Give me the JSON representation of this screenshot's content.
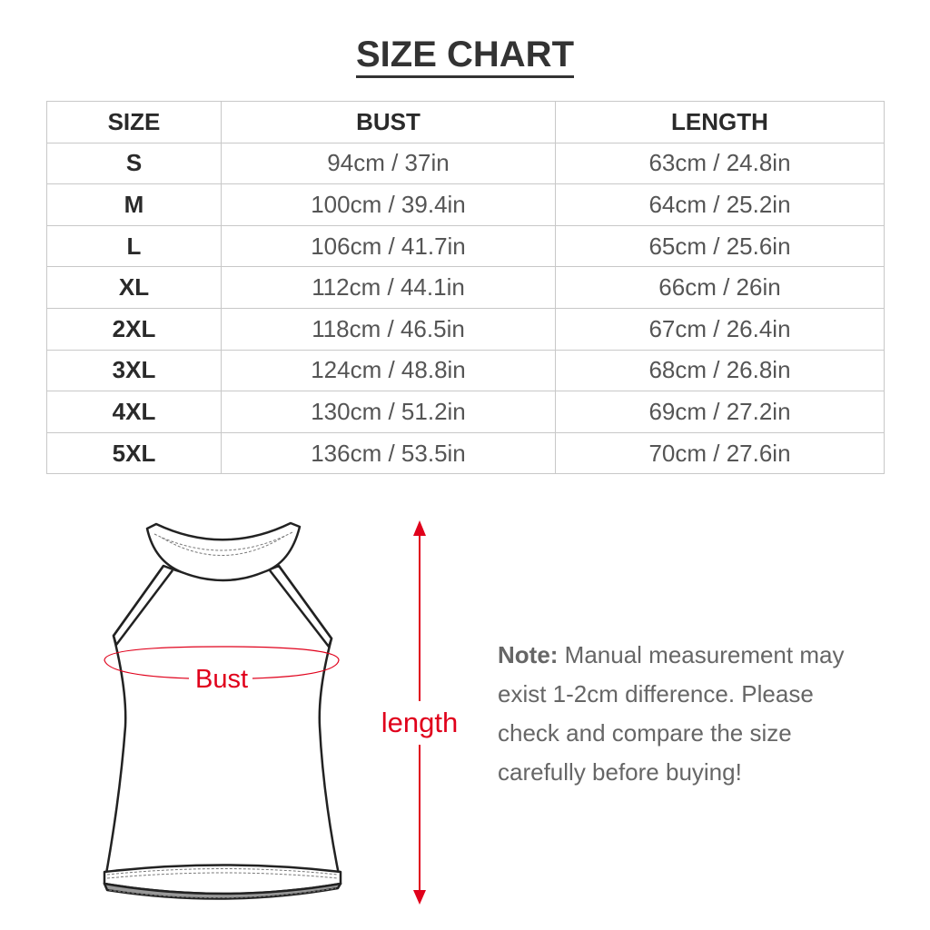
{
  "title": "SIZE CHART",
  "table": {
    "headers": [
      "SIZE",
      "BUST",
      "LENGTH"
    ],
    "rows": [
      [
        "S",
        "94cm / 37in",
        "63cm / 24.8in"
      ],
      [
        "M",
        "100cm / 39.4in",
        "64cm / 25.2in"
      ],
      [
        "L",
        "106cm / 41.7in",
        "65cm / 25.6in"
      ],
      [
        "XL",
        "112cm / 44.1in",
        "66cm / 26in"
      ],
      [
        "2XL",
        "118cm / 46.5in",
        "67cm / 26.4in"
      ],
      [
        "3XL",
        "124cm / 48.8in",
        "68cm / 26.8in"
      ],
      [
        "4XL",
        "130cm / 51.2in",
        "69cm / 27.2in"
      ],
      [
        "5XL",
        "136cm / 53.5in",
        "70cm / 27.6in"
      ]
    ]
  },
  "diagram": {
    "bust_label": "Bust",
    "length_label": "length",
    "accent_color": "#e0001b"
  },
  "note": {
    "label": "Note:",
    "text": " Manual measurement may exist 1-2cm difference. Please check and compare the size carefully before buying!"
  }
}
